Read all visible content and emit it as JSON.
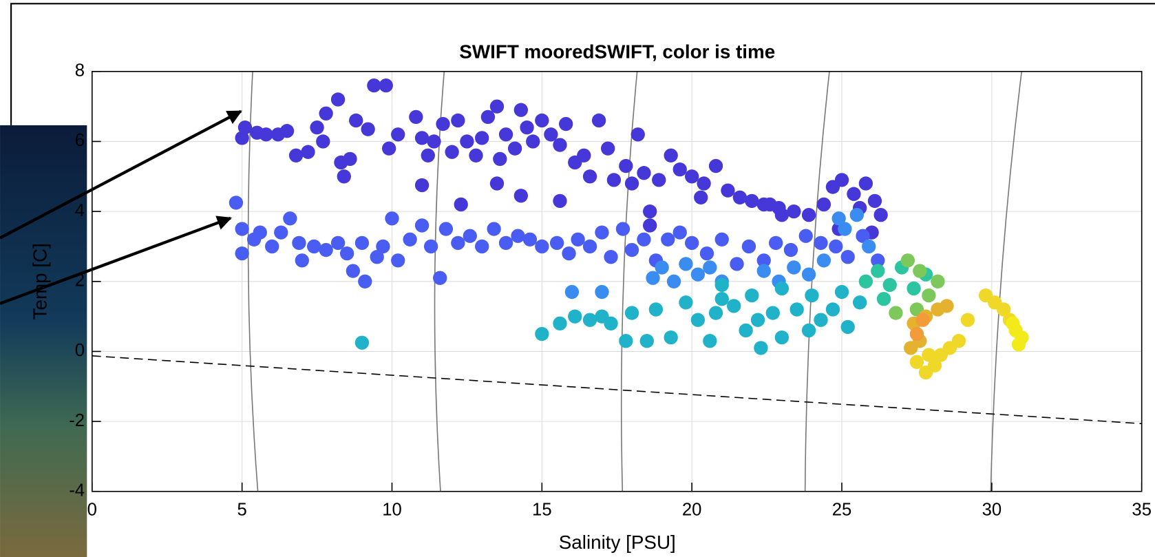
{
  "chart_data": {
    "type": "scatter",
    "title": "SWIFT mooredSWIFT, color is time",
    "xlabel": "Salinity [PSU]",
    "ylabel": "Temp [C]",
    "xlim": [
      0,
      35
    ],
    "ylim": [
      -4,
      8
    ],
    "xticks": [
      0,
      5,
      10,
      15,
      20,
      25,
      30,
      35
    ],
    "yticks": [
      -4,
      -2,
      0,
      2,
      4,
      6,
      8
    ],
    "grid": true,
    "series": [
      {
        "color": "#4637d8",
        "x": [
          5,
          5.1,
          5.5,
          5.8,
          6.2,
          6.5,
          6.8,
          7.2,
          7.5,
          7.7,
          7.8,
          8.2,
          8.3,
          8.4,
          8.6,
          8.8,
          9.2,
          9.4,
          9.8,
          9.9,
          10.2,
          10.8,
          11,
          11.2,
          11.4,
          11.7,
          12,
          12.2,
          12.5,
          12.8,
          13,
          13.2,
          13.5,
          13.6,
          13.8,
          14.1,
          14.3,
          14.5,
          14.7,
          15,
          15.3,
          15.6,
          15.8,
          16.1,
          16.4,
          16.6,
          16.9,
          17.2,
          17.4,
          17.8,
          18,
          18.2,
          18.4,
          18.6,
          18.9,
          19.3,
          19.6,
          20,
          20.4,
          20.8,
          21.2,
          21.6,
          22,
          22.4,
          22.9,
          23.4,
          23.9,
          24.4,
          24.7,
          25,
          25.4,
          25.8,
          26.1,
          26.3,
          25.6,
          24.9,
          26,
          22.6,
          23,
          20.3,
          13.5,
          15.6,
          14.3,
          12.3,
          11,
          18.6
        ],
        "y": [
          6.1,
          6.4,
          6.25,
          6.2,
          6.2,
          6.3,
          5.6,
          5.7,
          6.4,
          6,
          6.8,
          7.2,
          5.4,
          5,
          5.5,
          6.6,
          6.35,
          7.6,
          7.6,
          5.8,
          6.2,
          6.7,
          6.1,
          5.6,
          6,
          6.5,
          5.7,
          6.6,
          6,
          5.6,
          6.1,
          6.7,
          7,
          5.5,
          6.2,
          5.8,
          6.9,
          6.4,
          6,
          6.6,
          6.2,
          5.9,
          6.5,
          5.4,
          5.6,
          5,
          6.6,
          5.8,
          4.9,
          5.3,
          4.8,
          6.2,
          5.1,
          4,
          4.9,
          5.6,
          5.2,
          5,
          4.8,
          5.3,
          4.6,
          4.4,
          4.3,
          4.2,
          4.1,
          4,
          3.9,
          4.2,
          4.7,
          4.9,
          4.5,
          4.8,
          4.3,
          3.9,
          4.1,
          3.5,
          3.4,
          4.2,
          3.9,
          4.4,
          4.8,
          4.3,
          4.45,
          4.2,
          4.75,
          3.6
        ]
      },
      {
        "color": "#4a5df2",
        "x": [
          4.8,
          5,
          5,
          5.4,
          5.6,
          6,
          6.3,
          6.6,
          6.9,
          7,
          7.4,
          7.8,
          8.2,
          8.5,
          8.7,
          9,
          9.1,
          9.5,
          9.7,
          10,
          10.2,
          10.6,
          11,
          11.3,
          11.6,
          11.8,
          12.2,
          12.6,
          13,
          13.4,
          13.8,
          14.2,
          14.6,
          15,
          15.5,
          15.9,
          16.2,
          16.6,
          17,
          17.3,
          17.7,
          18,
          18.4,
          18.8,
          19.2,
          19.6,
          20,
          20.5,
          21,
          21.5,
          21.9,
          22.4,
          22.8,
          23.3,
          23.8,
          24.3,
          24.8,
          25.2,
          25.7,
          26.2
        ],
        "y": [
          4.25,
          3.5,
          2.8,
          3.2,
          3.4,
          3,
          3.4,
          3.8,
          3.1,
          2.6,
          3,
          2.9,
          3.1,
          2.8,
          2.3,
          3.1,
          2,
          2.7,
          3,
          3.8,
          2.6,
          3.2,
          3.6,
          3,
          2.1,
          3.5,
          3.1,
          3.3,
          3,
          3.5,
          3.1,
          3.3,
          3.2,
          3,
          3.1,
          2.8,
          3.2,
          3,
          3.4,
          2.7,
          3.5,
          2.9,
          3.2,
          2.6,
          3.2,
          3.4,
          3.1,
          2.8,
          3.2,
          2.5,
          3,
          2.6,
          3.1,
          2.9,
          3.3,
          3.1,
          3,
          2.7,
          3.3,
          2.6
        ]
      },
      {
        "color": "#3b8cf0",
        "x": [
          18.7,
          19,
          19.4,
          19.8,
          20.2,
          20.6,
          21,
          22.4,
          22.9,
          23.4,
          23.9,
          24.4,
          24.9,
          25.1,
          25.5,
          25.9,
          16,
          17
        ],
        "y": [
          2.1,
          2.4,
          2,
          2.5,
          2.2,
          2.4,
          2,
          2.3,
          2,
          2.4,
          2.2,
          2.6,
          3.8,
          3.5,
          3.9,
          3,
          1.7,
          1.7
        ]
      },
      {
        "color": "#1fb2c8",
        "x": [
          15,
          15.6,
          16.1,
          16.6,
          17,
          17.3,
          17.8,
          18,
          18.5,
          18.8,
          19.3,
          19.8,
          20.2,
          20.6,
          20.8,
          21,
          21.4,
          21.8,
          22.2,
          22.3,
          22.7,
          23,
          23.5,
          23.9,
          24.3,
          24.7,
          25.2,
          9,
          21,
          22,
          23,
          24,
          25,
          25.6
        ],
        "y": [
          0.5,
          0.8,
          1,
          0.9,
          1,
          0.8,
          0.3,
          1.1,
          0.3,
          1.2,
          0.4,
          1.4,
          0.9,
          0.3,
          1.1,
          1.5,
          1.3,
          0.6,
          0.9,
          0.1,
          1.1,
          0.4,
          1.2,
          0.6,
          0.9,
          1.2,
          0.7,
          0.25,
          1.9,
          1.6,
          1.8,
          1.6,
          1.7,
          1.4
        ]
      },
      {
        "color": "#2dc4a0",
        "x": [
          25.8,
          26.2,
          26.6,
          27,
          27.4,
          26.4,
          27.8
        ],
        "y": [
          2,
          2.3,
          1.9,
          2.4,
          1.8,
          1.5,
          2.2
        ]
      },
      {
        "color": "#7cc85a",
        "x": [
          27.2,
          27.6,
          27.9,
          28.2,
          27.5,
          26.8
        ],
        "y": [
          2.6,
          2.3,
          1.6,
          2,
          1.2,
          1.1
        ]
      },
      {
        "color": "#e4b22e",
        "x": [
          27.4,
          27.8,
          28.2,
          28.5,
          27.6,
          27.3
        ],
        "y": [
          0.8,
          1,
          1.2,
          1.3,
          0.3,
          0.1
        ]
      },
      {
        "color": "#f39a3b",
        "x": [
          27.5,
          27.7
        ],
        "y": [
          0.5,
          0.9
        ]
      },
      {
        "color": "#f0d828",
        "x": [
          27.5,
          27.8,
          28.1,
          28.3,
          28.6,
          28.9,
          27.9,
          29.2,
          29.8,
          30.1,
          30.4,
          30.6
        ],
        "y": [
          -0.3,
          -0.6,
          -0.4,
          -0.1,
          0.1,
          0.3,
          -0.1,
          0.9,
          1.6,
          1.4,
          1.2,
          0.9
        ]
      },
      {
        "color": "#f3ea1a",
        "x": [
          30.8,
          31,
          30.9,
          30.7
        ],
        "y": [
          0.6,
          0.4,
          0.2,
          0.8
        ]
      }
    ]
  }
}
